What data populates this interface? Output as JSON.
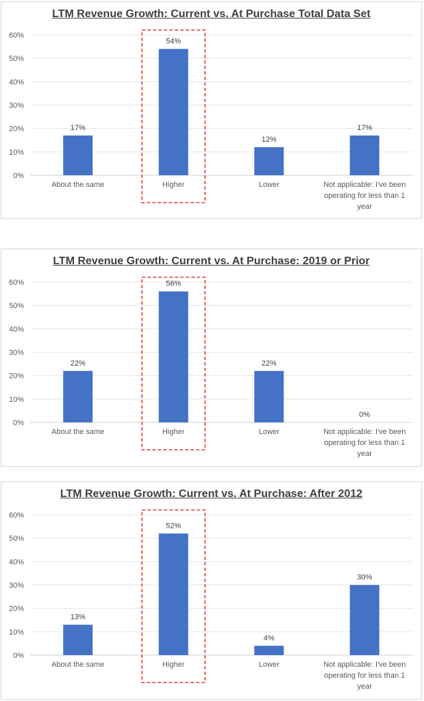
{
  "chart_data": [
    {
      "type": "bar",
      "title": "LTM Revenue Growth: Current vs. At Purchase Total Data Set",
      "categories": [
        "About the same",
        "Higher",
        "Lower",
        "Not applicable: I've been operating for less than 1 year"
      ],
      "values": [
        17,
        54,
        12,
        17
      ],
      "data_labels": [
        "17%",
        "54%",
        "12%",
        "17%"
      ],
      "y_ticks": [
        "0%",
        "10%",
        "20%",
        "30%",
        "40%",
        "50%",
        "60%"
      ],
      "ylim": [
        0,
        60
      ],
      "xlabel": "",
      "ylabel": "",
      "grid": true,
      "highlight_category": "Higher",
      "bar_color": "#4472c4",
      "highlight_color": "#e03c3c"
    },
    {
      "type": "bar",
      "title": "LTM Revenue Growth: Current vs. At Purchase: 2019 or Prior",
      "categories": [
        "About the same",
        "Higher",
        "Lower",
        "Not applicable: I've been operating for less than 1 year"
      ],
      "values": [
        22,
        56,
        22,
        0
      ],
      "data_labels": [
        "22%",
        "56%",
        "22%",
        "0%"
      ],
      "y_ticks": [
        "0%",
        "10%",
        "20%",
        "30%",
        "40%",
        "50%",
        "60%"
      ],
      "ylim": [
        0,
        60
      ],
      "xlabel": "",
      "ylabel": "",
      "grid": true,
      "highlight_category": "Higher",
      "bar_color": "#4472c4",
      "highlight_color": "#e03c3c"
    },
    {
      "type": "bar",
      "title": "LTM Revenue Growth: Current vs. At Purchase: After 2012",
      "categories": [
        "About the same",
        "Higher",
        "Lower",
        "Not applicable: I've been operating for less than 1 year"
      ],
      "values": [
        13,
        52,
        4,
        30
      ],
      "data_labels": [
        "13%",
        "52%",
        "4%",
        "30%"
      ],
      "y_ticks": [
        "0%",
        "10%",
        "20%",
        "30%",
        "40%",
        "50%",
        "60%"
      ],
      "ylim": [
        0,
        60
      ],
      "xlabel": "",
      "ylabel": "",
      "grid": true,
      "highlight_category": "Higher",
      "bar_color": "#4472c4",
      "highlight_color": "#e03c3c"
    }
  ]
}
